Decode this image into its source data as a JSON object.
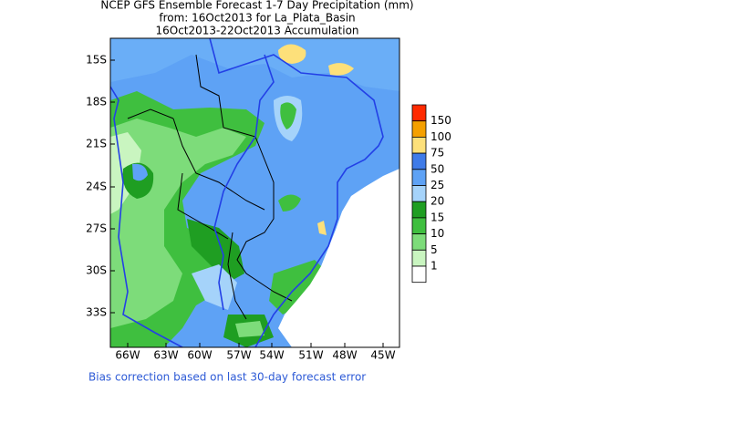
{
  "title_lines": [
    "NCEP GFS Ensemble Forecast 1-7 Day Precipitation (mm)",
    "from: 16Oct2013   for La_Plata_Basin",
    "16Oct2013-22Oct2013 Accumulation"
  ],
  "lat_labels": [
    "15S",
    "18S",
    "21S",
    "24S",
    "27S",
    "30S",
    "33S"
  ],
  "lon_labels": [
    "66W",
    "63W",
    "60W",
    "57W",
    "54W",
    "51W",
    "48W",
    "45W"
  ],
  "legend": {
    "levels": [
      150,
      100,
      75,
      50,
      25,
      20,
      15,
      10,
      5,
      1
    ],
    "colors": [
      "#ff2a00",
      "#f5a000",
      "#fde07a",
      "#3f7be8",
      "#5ea2f5",
      "#a5d3fa",
      "#1f9e22",
      "#3fbf3f",
      "#7ddc7a",
      "#c9f5c0",
      "#ffffff"
    ]
  },
  "footnote": "Bias correction based on last 30-day forecast error"
}
